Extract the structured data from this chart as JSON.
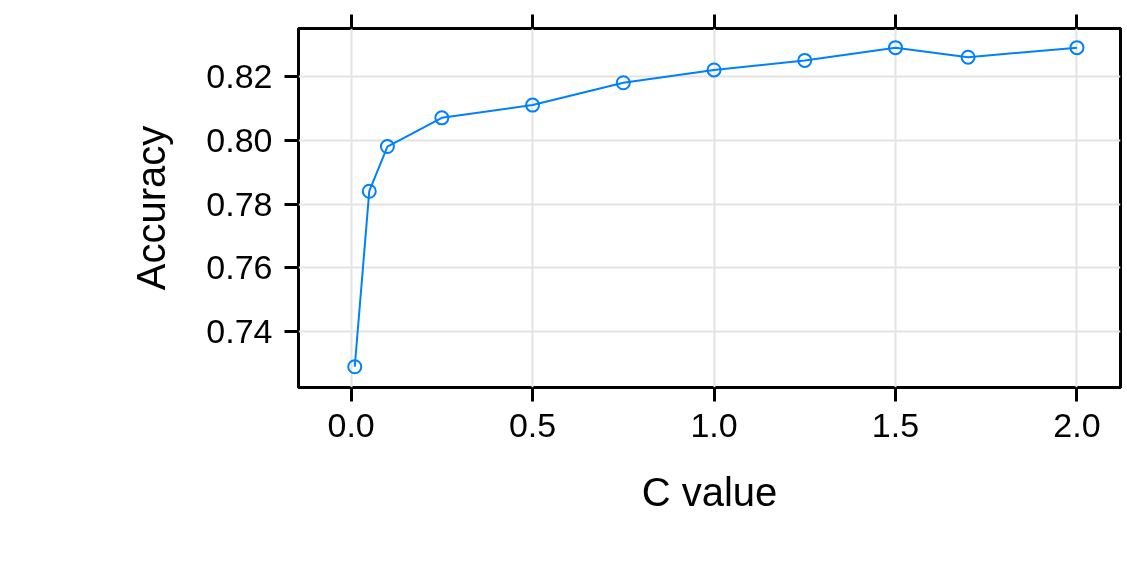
{
  "chart_data": {
    "type": "line",
    "xlabel": "C value",
    "ylabel": "Accuracy",
    "x": [
      0.01,
      0.05,
      0.1,
      0.25,
      0.5,
      0.75,
      1.0,
      1.25,
      1.5,
      1.7,
      2.0
    ],
    "series": [
      {
        "color": "#0080ff",
        "values": [
          0.729,
          0.784,
          0.798,
          0.807,
          0.811,
          0.818,
          0.822,
          0.825,
          0.829,
          0.826,
          0.829
        ]
      }
    ],
    "xlim": [
      -0.145,
      2.12
    ],
    "ylim": [
      0.7225,
      0.835
    ],
    "xticks": [
      {
        "value": 0,
        "label": "0.0"
      },
      {
        "value": 0.5,
        "label": "0.5"
      },
      {
        "value": 1,
        "label": "1.0"
      },
      {
        "value": 1.5,
        "label": "1.5"
      },
      {
        "value": 2,
        "label": "2.0"
      }
    ],
    "yticks": [
      0.74,
      0.76,
      0.78,
      {
        "value": 0.8,
        "label": "0.80"
      },
      0.82
    ],
    "grid": true,
    "marker": "circle",
    "line_style": "solid"
  }
}
